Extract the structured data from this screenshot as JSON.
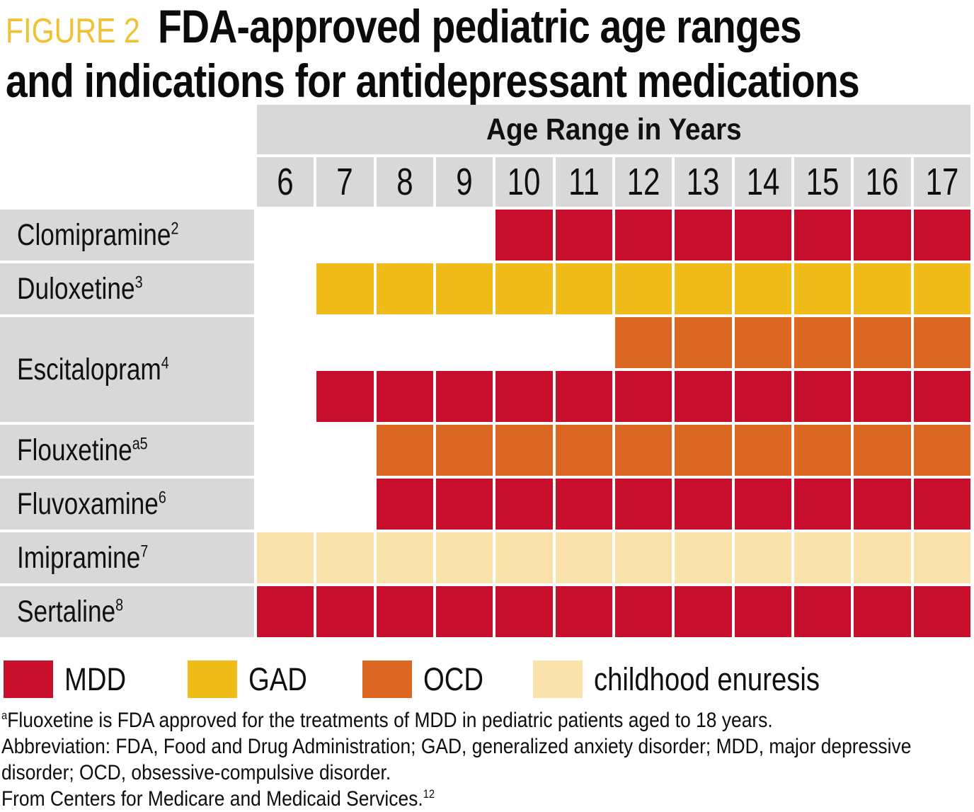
{
  "figure": {
    "label": "FIGURE 2",
    "title_line1": "FDA-approved pediatric age ranges",
    "title_line2": "and indications for antidepressant medications"
  },
  "colors": {
    "MDD": "#C8102E",
    "GAD": "#F0BC1A",
    "OCD": "#DC6722",
    "childhood enuresis": "#FAE3AB",
    "header_gray": "#D8D8D8",
    "figure_label_gold": "#F0C233"
  },
  "chart_data": {
    "type": "heatmap",
    "title": "FDA-approved pediatric age ranges and indications for antidepressant medications",
    "x_header": "Age Range in Years",
    "ages": [
      6,
      7,
      8,
      9,
      10,
      11,
      12,
      13,
      14,
      15,
      16,
      17
    ],
    "rows": [
      {
        "drug": "Clomipramine",
        "sup": "2",
        "bands": [
          {
            "indication": "MDD",
            "age_start": 10,
            "age_end": 17
          }
        ]
      },
      {
        "drug": "Duloxetine",
        "sup": "3",
        "bands": [
          {
            "indication": "GAD",
            "age_start": 7,
            "age_end": 17
          }
        ]
      },
      {
        "drug": "Escitalopram",
        "sup": "4",
        "bands": [
          {
            "indication": "OCD",
            "age_start": 12,
            "age_end": 17
          },
          {
            "indication": "MDD",
            "age_start": 7,
            "age_end": 17
          }
        ]
      },
      {
        "drug": "Flouxetine",
        "sup": "a5",
        "bands": [
          {
            "indication": "OCD",
            "age_start": 8,
            "age_end": 17
          }
        ]
      },
      {
        "drug": "Fluvoxamine",
        "sup": "6",
        "bands": [
          {
            "indication": "MDD",
            "age_start": 8,
            "age_end": 17
          }
        ]
      },
      {
        "drug": "Imipramine",
        "sup": "7",
        "bands": [
          {
            "indication": "childhood enuresis",
            "age_start": 6,
            "age_end": 17
          }
        ]
      },
      {
        "drug": "Sertaline",
        "sup": "8",
        "bands": [
          {
            "indication": "MDD",
            "age_start": 6,
            "age_end": 17
          }
        ]
      }
    ],
    "legend": [
      {
        "label": "MDD",
        "color": "#C8102E"
      },
      {
        "label": "GAD",
        "color": "#F0BC1A"
      },
      {
        "label": "OCD",
        "color": "#DC6722"
      },
      {
        "label": "childhood enuresis",
        "color": "#FAE3AB"
      }
    ],
    "legend_position": "bottom",
    "grid": false
  },
  "footnotes": [
    {
      "sup": "a",
      "text": "Fluoxetine is FDA approved for the treatments of MDD in pediatric patients aged to 18 years."
    },
    {
      "text": "Abbreviation: FDA, Food and Drug Administration; GAD, generalized anxiety disorder; MDD, major depressive disorder; OCD, obsessive-compulsive disorder."
    },
    {
      "text": "From Centers for Medicare and Medicaid Services.",
      "sup_end": "12"
    }
  ]
}
